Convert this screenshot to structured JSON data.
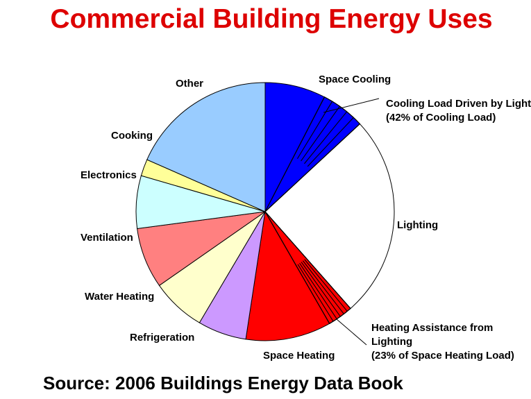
{
  "slide": {
    "title": "Commercial Building Energy Uses",
    "source": "Source:  2006 Buildings Energy Data Book"
  },
  "chart_data": {
    "type": "pie",
    "title": "Commercial Building Energy Uses",
    "start_angle_deg": 0,
    "direction": "clockwise",
    "units": "percent",
    "slices": [
      {
        "label": "Space Cooling",
        "value": 13.1,
        "color": "#0000ff"
      },
      {
        "label": "Lighting",
        "value": 25.4,
        "color": "#ffffff"
      },
      {
        "label": "Space Heating",
        "value": 13.9,
        "color": "#ff0000"
      },
      {
        "label": "Refrigeration",
        "value": 6.1,
        "color": "#cc99ff"
      },
      {
        "label": "Water Heating",
        "value": 6.8,
        "color": "#ffffcc"
      },
      {
        "label": "Ventilation",
        "value": 7.6,
        "color": "#ff8080"
      },
      {
        "label": "Electronics",
        "value": 6.6,
        "color": "#ccffff"
      },
      {
        "label": "Cooking",
        "value": 2.1,
        "color": "#ffff99"
      },
      {
        "label": "Other",
        "value": 18.4,
        "color": "#99ccff"
      }
    ],
    "annotations": [
      {
        "lines": [
          "Cooling Load Driven by Lighting",
          "(42% of Cooling Load)"
        ],
        "refers_to": "Space Cooling",
        "share_of_slice": 0.42
      },
      {
        "lines": [
          "Heating Assistance from",
          "Lighting",
          "(23% of Space Heating Load)"
        ],
        "refers_to": "Space Heating",
        "share_of_slice": 0.23
      }
    ]
  }
}
